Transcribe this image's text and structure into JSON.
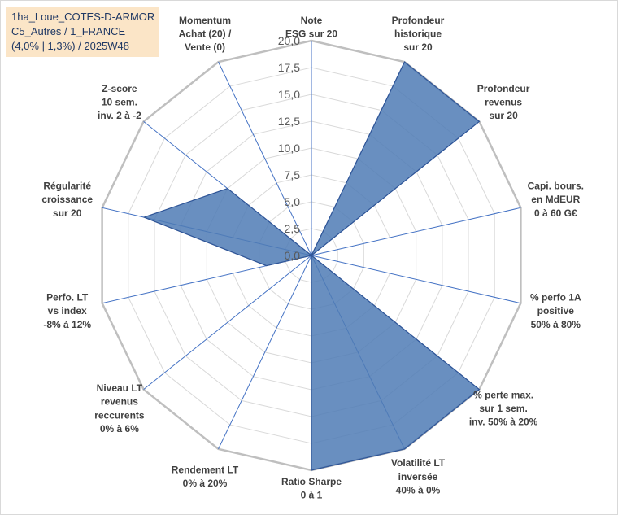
{
  "info_box": {
    "line1": "1ha_Loue_COTES-D-ARMOR",
    "line2": "C5_Autres / 1_FRANCE",
    "line3": "(4,0% | 1,3%) / 2025W48"
  },
  "chart_data": {
    "type": "radar",
    "rmin": 0,
    "rmax": 20,
    "tick_step": 2.5,
    "tick_labels": [
      "0,0",
      "2,5",
      "5,0",
      "7,5",
      "10,0",
      "12,5",
      "15,0",
      "17,5",
      "20,0"
    ],
    "axes": [
      {
        "label": [
          "Note",
          "ESG sur 20"
        ],
        "value": 0
      },
      {
        "label": [
          "Profondeur",
          "historique",
          "sur 20"
        ],
        "value": 20
      },
      {
        "label": [
          "Profondeur",
          "revenus",
          "sur 20"
        ],
        "value": 20
      },
      {
        "label": [
          "Capi. bours.",
          "en MdEUR",
          "0 à 60 G€"
        ],
        "value": 0
      },
      {
        "label": [
          "% perfo 1A",
          "positive",
          "50% à 80%"
        ],
        "value": 0
      },
      {
        "label": [
          "% perte max.",
          "sur 1 sem.",
          "inv. 50% à 20%"
        ],
        "value": 20
      },
      {
        "label": [
          "Volatilité LT",
          "inversée",
          "40% à 0%"
        ],
        "value": 20
      },
      {
        "label": [
          "Ratio Sharpe",
          "0 à 1"
        ],
        "value": 20
      },
      {
        "label": [
          "Rendement LT",
          "0% à 20%"
        ],
        "value": 0
      },
      {
        "label": [
          "Niveau LT",
          "revenus",
          "reccurents",
          "0% à 6%"
        ],
        "value": 0
      },
      {
        "label": [
          "Perfo. LT",
          "vs index",
          "-8% à 12%"
        ],
        "value": 4.3
      },
      {
        "label": [
          "Régularité",
          "croissance",
          "sur 20"
        ],
        "value": 16
      },
      {
        "label": [
          "Z-score",
          "10 sem.",
          "inv. 2 à -2"
        ],
        "value": 10
      },
      {
        "label": [
          "Momentum",
          "Achat (20) /",
          "Vente (0)"
        ],
        "value": 0
      }
    ],
    "series": [
      {
        "values": [
          0,
          20,
          20,
          0,
          0,
          20,
          20,
          20,
          0,
          0,
          4.3,
          16,
          10,
          0
        ]
      }
    ],
    "colors": {
      "fill": "#4f7bb5",
      "stroke": "#2f5597",
      "spoke": "#4472c4",
      "grid": "#d9d9d9",
      "outer_ring": "#bfbfbf"
    }
  }
}
